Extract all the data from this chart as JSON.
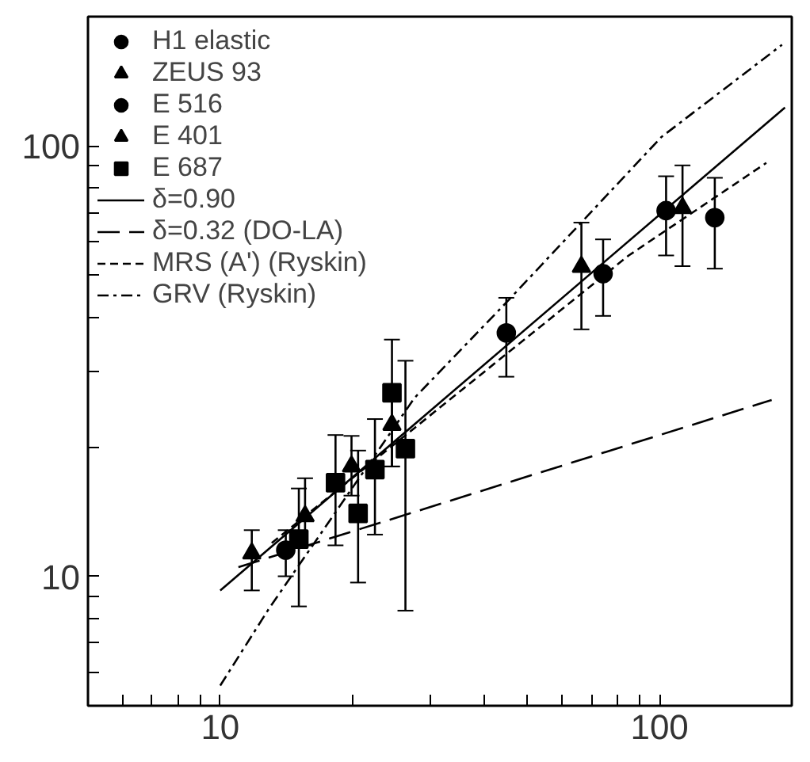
{
  "chart_data": {
    "type": "scatter",
    "log": "xy",
    "xlim": [
      5,
      200
    ],
    "ylim": [
      5,
      200
    ],
    "xticks": [
      {
        "value": 5,
        "label": null
      },
      {
        "value": 6,
        "label": null
      },
      {
        "value": 7,
        "label": null
      },
      {
        "value": 8,
        "label": null
      },
      {
        "value": 9,
        "label": null
      },
      10,
      {
        "value": 20,
        "label": null
      },
      {
        "value": 30,
        "label": null
      },
      {
        "value": 40,
        "label": null
      },
      {
        "value": 50,
        "label": null
      },
      {
        "value": 60,
        "label": null
      },
      {
        "value": 70,
        "label": null
      },
      {
        "value": 80,
        "label": null
      },
      {
        "value": 90,
        "label": null
      },
      100,
      {
        "value": 200,
        "label": null
      }
    ],
    "yticks": [
      {
        "value": 5,
        "label": null
      },
      {
        "value": 6,
        "label": null
      },
      {
        "value": 7,
        "label": null
      },
      {
        "value": 8,
        "label": null
      },
      {
        "value": 9,
        "label": null
      },
      10,
      {
        "value": 20,
        "label": null
      },
      {
        "value": 30,
        "label": null
      },
      {
        "value": 40,
        "label": null
      },
      {
        "value": 50,
        "label": null
      },
      {
        "value": 60,
        "label": null
      },
      {
        "value": 70,
        "label": null
      },
      {
        "value": 80,
        "label": null
      },
      {
        "value": 90,
        "label": null
      },
      100,
      {
        "value": 200,
        "label": null
      }
    ],
    "grid": false,
    "legend": "top left",
    "series": [
      {
        "name": "H1 elastic",
        "marker": "circle",
        "color": "#000000",
        "x": [
          44.8,
          74.4,
          103.5,
          133.6
        ],
        "values": [
          36.8,
          50.5,
          70.8,
          68.2
        ],
        "errors": [
          [
            29.1,
            44.4
          ],
          [
            40.3,
            60.7
          ],
          [
            55.7,
            85.1
          ],
          [
            51.9,
            84.4
          ]
        ]
      },
      {
        "name": "ZEUS 93",
        "marker": "triangle",
        "color": "#000000",
        "x": [
          66.4,
          112.8
        ],
        "values": [
          52.4,
          71.8
        ],
        "errors": [
          [
            37.5,
            66.4
          ],
          [
            52.6,
            90.2
          ]
        ]
      },
      {
        "name": "E 516",
        "marker": "circle",
        "color": "#000000",
        "x": [
          14.1
        ],
        "values": [
          11.5
        ],
        "errors": [
          [
            10.0,
            12.8
          ]
        ]
      },
      {
        "name": "E 401",
        "marker": "triangle",
        "color": "#000000",
        "x": [
          11.8,
          15.6,
          19.9,
          24.6
        ],
        "values": [
          11.3,
          13.8,
          18.0,
          22.5
        ],
        "errors": [
          [
            9.27,
            12.8
          ],
          [
            11.8,
            16.9
          ],
          [
            15.4,
            21.2
          ],
          [
            18.0,
            26.0
          ]
        ]
      },
      {
        "name": "E 687",
        "marker": "square",
        "color": "#000000",
        "x": [
          15.1,
          18.3,
          20.6,
          22.5,
          24.6,
          26.4
        ],
        "values": [
          12.2,
          16.5,
          14.0,
          17.7,
          26.7,
          19.8
        ],
        "errors": [
          [
            8.51,
            16.0
          ],
          [
            11.8,
            21.3
          ],
          [
            9.67,
            19.6
          ],
          [
            12.5,
            23.2
          ],
          [
            18.0,
            35.5
          ],
          [
            8.32,
            31.7
          ]
        ]
      },
      {
        "name": "δ=0.90",
        "type": "line",
        "line_style": "solid",
        "color": "#000000",
        "x": [
          10,
          193
        ],
        "values": [
          9.27,
          123
        ]
      },
      {
        "name": "δ=0.32 (DO-LA)",
        "type": "line",
        "line_style": "longdash",
        "color": "#000000",
        "x": [
          11,
          180
        ],
        "values": [
          10.5,
          25.7
        ]
      },
      {
        "name": "MRS (A') (Ryskin)",
        "type": "line",
        "line_style": "dashed",
        "color": "#000000",
        "x": [
          13.1,
          85.1,
          175
        ],
        "values": [
          11.95,
          55.7,
          91.4
        ]
      },
      {
        "name": "GRV (Ryskin)",
        "type": "line",
        "line_style": "dashdot",
        "color": "#000000",
        "x": [
          10,
          12.9,
          27.7,
          44.8,
          101,
          190
        ],
        "values": [
          5.57,
          8.4,
          26.0,
          43.3,
          105,
          172
        ]
      }
    ]
  }
}
